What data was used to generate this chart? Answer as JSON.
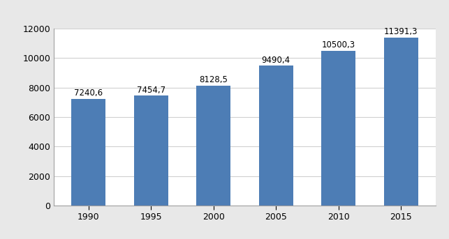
{
  "categories": [
    "1990",
    "1995",
    "2000",
    "2005",
    "2010",
    "2015"
  ],
  "values": [
    7240.6,
    7454.7,
    8128.5,
    9490.4,
    10500.3,
    11391.3
  ],
  "labels": [
    "7240,6",
    "7454,7",
    "8128,5",
    "9490,4",
    "10500,3",
    "11391,3"
  ],
  "bar_color": "#4d7db5",
  "background_color": "#ffffff",
  "plot_bg_color": "#ffffff",
  "grid_color": "#d0d0d0",
  "border_color": "#a0a0a0",
  "ylim": [
    0,
    12000
  ],
  "yticks": [
    0,
    2000,
    4000,
    6000,
    8000,
    10000,
    12000
  ],
  "ytick_labels": [
    "0",
    "2000",
    "4000",
    "6000",
    "8000",
    "10000",
    "12000"
  ],
  "bar_width": 0.55,
  "label_fontsize": 8.5,
  "tick_fontsize": 9,
  "figsize": [
    6.43,
    3.43
  ],
  "dpi": 100
}
